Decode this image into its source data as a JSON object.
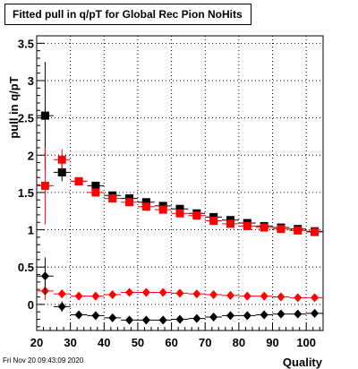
{
  "title": "Fitted pull in q/pT for Global Rec Pion NoHits",
  "timestamp": "Fri Nov 20 09:43:09 2020",
  "chart_data": {
    "type": "scatter",
    "title": "Fitted pull in q/pT for Global Rec Pion NoHits",
    "xlabel": "Quality",
    "ylabel": "pull in q/pT",
    "xlim": [
      20,
      105
    ],
    "ylim": [
      -0.35,
      3.6
    ],
    "x_ticks": [
      "20",
      "30",
      "40",
      "50",
      "60",
      "70",
      "80",
      "90",
      "100"
    ],
    "y_ticks": [
      "0",
      "0.5",
      "1",
      "1.5",
      "2",
      "2.5",
      "3",
      "3.5"
    ],
    "grid": true,
    "x": [
      22.5,
      27.5,
      32.5,
      37.5,
      42.5,
      47.5,
      52.5,
      57.5,
      62.5,
      67.5,
      72.5,
      77.5,
      82.5,
      87.5,
      92.5,
      97.5,
      102.5
    ],
    "series": [
      {
        "color": "#000000",
        "marker": "square",
        "values": [
          2.53,
          1.77,
          1.65,
          1.59,
          1.46,
          1.42,
          1.37,
          1.32,
          1.28,
          1.22,
          1.17,
          1.13,
          1.09,
          1.05,
          1.03,
          1.01,
          0.98
        ],
        "errors": [
          0.72,
          0.12,
          0.04,
          0.03,
          0.03,
          0.03,
          0.03,
          0.03,
          0.03,
          0.03,
          0.03,
          0.03,
          0.03,
          0.03,
          0.03,
          0.03,
          0.03
        ]
      },
      {
        "color": "#ff0000",
        "marker": "square",
        "values": [
          1.59,
          1.94,
          1.65,
          1.5,
          1.42,
          1.37,
          1.31,
          1.27,
          1.22,
          1.19,
          1.12,
          1.08,
          1.05,
          1.03,
          1.01,
          0.99,
          0.97
        ],
        "errors": [
          0.52,
          0.14,
          0.04,
          0.04,
          0.03,
          0.03,
          0.03,
          0.03,
          0.03,
          0.03,
          0.03,
          0.03,
          0.03,
          0.03,
          0.03,
          0.03,
          0.03
        ]
      },
      {
        "color": "#ff0000",
        "marker": "diamond",
        "values": [
          0.18,
          0.14,
          0.11,
          0.11,
          0.13,
          0.16,
          0.16,
          0.16,
          0.15,
          0.14,
          0.13,
          0.12,
          0.11,
          0.11,
          0.1,
          0.09,
          0.09
        ],
        "errors": [
          0.12,
          0.06,
          0.02,
          0.02,
          0.02,
          0.02,
          0.02,
          0.02,
          0.02,
          0.02,
          0.02,
          0.02,
          0.02,
          0.02,
          0.02,
          0.02,
          0.02
        ]
      },
      {
        "color": "#000000",
        "marker": "diamond",
        "values": [
          0.38,
          -0.03,
          -0.14,
          -0.15,
          -0.18,
          -0.21,
          -0.21,
          -0.21,
          -0.2,
          -0.19,
          -0.17,
          -0.15,
          -0.15,
          -0.14,
          -0.13,
          -0.13,
          -0.12
        ],
        "errors": [
          0.25,
          0.07,
          0.02,
          0.02,
          0.02,
          0.02,
          0.02,
          0.02,
          0.02,
          0.02,
          0.02,
          0.02,
          0.02,
          0.02,
          0.02,
          0.02,
          0.02
        ]
      }
    ]
  }
}
